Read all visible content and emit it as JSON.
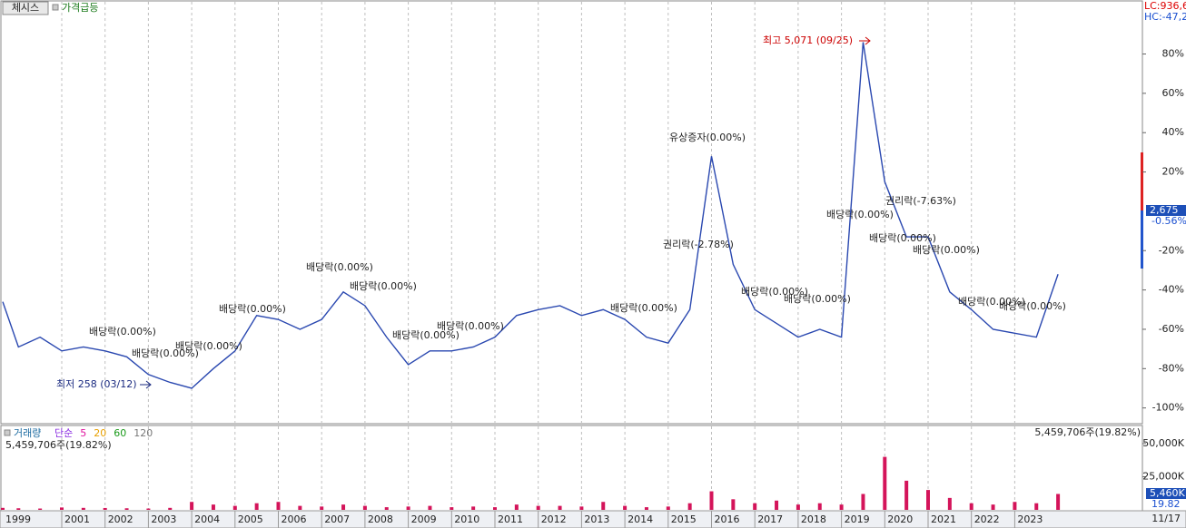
{
  "toolbar": {
    "button": "체시스",
    "indicator": "가격급등"
  },
  "chart_data": [
    {
      "type": "line",
      "categories": [
        "1999",
        null,
        null,
        "2001",
        null,
        "2002",
        null,
        "2003",
        null,
        "2004",
        null,
        "2005",
        null,
        "2006",
        null,
        "2007",
        null,
        "2008",
        null,
        "2009",
        null,
        "2010",
        null,
        "2011",
        null,
        "2012",
        null,
        "2013",
        null,
        "2014",
        null,
        "2015",
        null,
        "2016",
        null,
        "2017",
        null,
        "2018",
        null,
        "2019",
        null,
        "2020",
        null,
        "2021",
        null,
        "2022",
        null,
        "2023",
        null,
        null
      ],
      "values": [
        -46,
        -69,
        -64,
        -71,
        -69,
        -71,
        -74,
        -83,
        -87,
        -90,
        -80,
        -71,
        -53,
        -55,
        -60,
        -55,
        -41,
        -48,
        -64,
        -78,
        -71,
        -71,
        -69,
        -64,
        -53,
        -50,
        -48,
        -53,
        -50,
        -55,
        -64,
        -67,
        -50,
        28,
        -27,
        -50,
        -57,
        -64,
        -60,
        -64,
        86,
        15,
        -13,
        -13,
        -41,
        -50,
        -60,
        -62,
        -64,
        -32
      ],
      "color": "#2a48b0",
      "ylim": [
        -108,
        107
      ],
      "yticks": [
        {
          "value": -100,
          "label": "-100%"
        },
        {
          "value": -80,
          "label": "-80%"
        },
        {
          "value": -60,
          "label": "-60%"
        },
        {
          "value": -40,
          "label": "-40%"
        },
        {
          "value": -20,
          "label": "-20%"
        },
        {
          "value": 20,
          "label": "20%"
        },
        {
          "value": 40,
          "label": "40%"
        },
        {
          "value": 60,
          "label": "60%"
        },
        {
          "value": 80,
          "label": "80%"
        }
      ],
      "limits": [
        "LC:936,6",
        "HC:-47,2"
      ],
      "current": [
        "2,675",
        "-0.56%"
      ],
      "annotations": [
        "최고 5,071 (09/25)",
        "최저 258 (03/12)",
        "유상증자(0.00%)",
        "권리락(-7.63%)",
        "권리락(-2.78%)",
        "배당락(0.00%)",
        "배당락(0.00%)",
        "배당락(0.00%)",
        "배당락(0.00%)",
        "배당락(0.00%)",
        "배당락(0.00%)",
        "배당락(0.00%)",
        "배당락(0.00%)",
        "배당락(0.00%)",
        "배당락(0.00%)",
        "배당락(0.00%)",
        "배당락(0.00%)",
        "배당락(0.00%)",
        "배당락(0.00%)",
        "배당락(0.00%)",
        "배당락(0.00%)"
      ]
    },
    {
      "type": "bar",
      "title": "거래량",
      "indicators": [
        "단순",
        "5",
        "20",
        "60",
        "120"
      ],
      "summary": "5,459,706주(19.82%)",
      "current": [
        "5,460K",
        "19.82"
      ],
      "values": [
        1500,
        1200,
        1000,
        1800,
        1500,
        1400,
        1200,
        1000,
        1500,
        6000,
        4000,
        3000,
        5000,
        6000,
        3000,
        2500,
        4000,
        3000,
        2000,
        2500,
        3000,
        2000,
        2500,
        2000,
        4000,
        3000,
        3000,
        2500,
        6000,
        3000,
        2000,
        2500,
        5000,
        14000,
        8000,
        5000,
        7000,
        4000,
        5000,
        4000,
        12000,
        40000,
        22000,
        15000,
        9000,
        5000,
        4000,
        6000,
        5000,
        12000
      ],
      "color": "#d4145a",
      "ylim": [
        0,
        63000
      ],
      "yticks": [
        {
          "value": 25000,
          "label": "25,000K"
        },
        {
          "value": 50000,
          "label": "50,000K"
        }
      ]
    }
  ],
  "footer": {
    "date": "11/17"
  }
}
